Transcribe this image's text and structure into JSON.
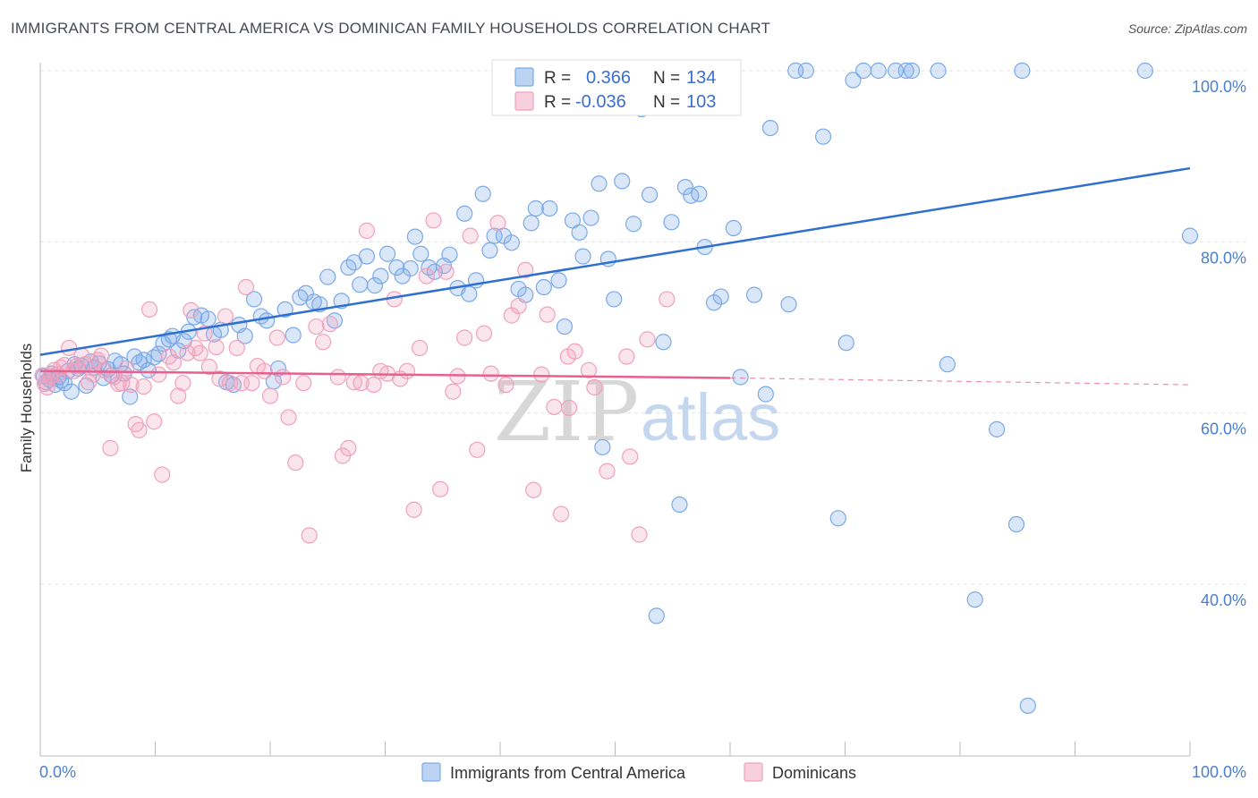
{
  "title": "IMMIGRANTS FROM CENTRAL AMERICA VS DOMINICAN FAMILY HOUSEHOLDS CORRELATION CHART",
  "source": "Source: ZipAtlas.com",
  "watermark": {
    "zip": "ZIP",
    "atlas": "atlas"
  },
  "legend": {
    "r_label": "R =",
    "n_label": "N =",
    "rows": [
      {
        "r": "0.366",
        "n": "134",
        "color": "#a9c8f0"
      },
      {
        "r": "-0.036",
        "n": "103",
        "color": "#f5bdd0"
      }
    ]
  },
  "chart_data": {
    "type": "scatter",
    "title": "IMMIGRANTS FROM CENTRAL AMERICA VS DOMINICAN FAMILY HOUSEHOLDS CORRELATION CHART",
    "xlabel": "",
    "ylabel": "Family Households",
    "xlim": [
      0,
      100
    ],
    "ylim": [
      20,
      102
    ],
    "x_tick_labels": [
      "0.0%",
      "100.0%"
    ],
    "y_ticks": [
      40,
      60,
      80,
      100
    ],
    "y_tick_labels": [
      "40.0%",
      "60.0%",
      "80.0%",
      "100.0%"
    ],
    "grid": true,
    "legend_position": "bottom-center",
    "series": [
      {
        "name": "Immigrants from Central America",
        "color": "#7aa9e8",
        "line_color": "#2e6fd0",
        "trend": {
          "x0": 0,
          "y0": 66.8,
          "x1": 100,
          "y1": 88.6
        },
        "points": [
          [
            0.3,
            64.3
          ],
          [
            0.5,
            63.6
          ],
          [
            0.8,
            63.9
          ],
          [
            1.0,
            64.6
          ],
          [
            1.3,
            63.3
          ],
          [
            1.6,
            64.2
          ],
          [
            1.8,
            63.8
          ],
          [
            2.1,
            63.5
          ],
          [
            2.4,
            64.9
          ],
          [
            2.7,
            62.5
          ],
          [
            3.0,
            65.7
          ],
          [
            3.3,
            65.2
          ],
          [
            3.6,
            65.5
          ],
          [
            4.0,
            63.2
          ],
          [
            4.4,
            66.0
          ],
          [
            4.7,
            65.3
          ],
          [
            5.1,
            65.8
          ],
          [
            5.5,
            64.1
          ],
          [
            5.9,
            65.1
          ],
          [
            6.2,
            64.4
          ],
          [
            6.5,
            66.1
          ],
          [
            7.0,
            65.7
          ],
          [
            7.3,
            64.6
          ],
          [
            7.8,
            61.9
          ],
          [
            8.2,
            66.6
          ],
          [
            8.6,
            65.9
          ],
          [
            9.0,
            66.2
          ],
          [
            9.4,
            65.0
          ],
          [
            9.9,
            66.5
          ],
          [
            10.3,
            66.9
          ],
          [
            10.7,
            68.1
          ],
          [
            11.2,
            68.6
          ],
          [
            11.5,
            69.0
          ],
          [
            12.0,
            67.3
          ],
          [
            12.5,
            68.4
          ],
          [
            12.9,
            69.5
          ],
          [
            13.4,
            71.2
          ],
          [
            14.0,
            71.4
          ],
          [
            14.6,
            71.0
          ],
          [
            15.1,
            69.2
          ],
          [
            15.7,
            69.7
          ],
          [
            16.2,
            63.6
          ],
          [
            16.8,
            63.3
          ],
          [
            17.3,
            70.3
          ],
          [
            17.8,
            69.0
          ],
          [
            18.6,
            73.3
          ],
          [
            19.2,
            71.3
          ],
          [
            19.7,
            70.8
          ],
          [
            20.3,
            63.7
          ],
          [
            20.7,
            65.2
          ],
          [
            21.3,
            72.1
          ],
          [
            22.0,
            69.1
          ],
          [
            22.6,
            73.5
          ],
          [
            23.1,
            74.0
          ],
          [
            23.8,
            73.0
          ],
          [
            24.3,
            72.7
          ],
          [
            25.0,
            75.9
          ],
          [
            25.6,
            70.8
          ],
          [
            26.2,
            73.1
          ],
          [
            26.8,
            77.0
          ],
          [
            27.3,
            77.6
          ],
          [
            27.8,
            75.0
          ],
          [
            28.4,
            78.3
          ],
          [
            29.1,
            74.9
          ],
          [
            29.6,
            76.0
          ],
          [
            30.2,
            78.6
          ],
          [
            31.0,
            77.0
          ],
          [
            31.5,
            76.0
          ],
          [
            32.2,
            76.9
          ],
          [
            32.6,
            80.6
          ],
          [
            33.1,
            78.6
          ],
          [
            33.8,
            77.0
          ],
          [
            34.3,
            76.5
          ],
          [
            35.1,
            77.2
          ],
          [
            35.6,
            78.5
          ],
          [
            36.3,
            74.6
          ],
          [
            36.9,
            83.3
          ],
          [
            37.3,
            73.9
          ],
          [
            37.9,
            75.5
          ],
          [
            38.5,
            85.6
          ],
          [
            39.1,
            79.0
          ],
          [
            39.5,
            80.7
          ],
          [
            40.3,
            80.7
          ],
          [
            41.0,
            79.9
          ],
          [
            41.6,
            74.5
          ],
          [
            42.2,
            73.8
          ],
          [
            42.7,
            82.2
          ],
          [
            43.1,
            83.9
          ],
          [
            43.8,
            74.7
          ],
          [
            44.3,
            83.9
          ],
          [
            45.1,
            75.5
          ],
          [
            45.6,
            70.1
          ],
          [
            46.3,
            82.5
          ],
          [
            46.9,
            81.1
          ],
          [
            47.2,
            78.3
          ],
          [
            47.9,
            82.8
          ],
          [
            48.6,
            86.8
          ],
          [
            48.9,
            56.0
          ],
          [
            49.4,
            78.0
          ],
          [
            49.9,
            73.3
          ],
          [
            50.6,
            87.1
          ],
          [
            51.6,
            82.1
          ],
          [
            52.3,
            95.5
          ],
          [
            53.0,
            85.5
          ],
          [
            53.6,
            36.3
          ],
          [
            54.2,
            68.3
          ],
          [
            54.9,
            82.3
          ],
          [
            55.6,
            49.3
          ],
          [
            56.1,
            86.4
          ],
          [
            56.6,
            85.4
          ],
          [
            57.3,
            85.6
          ],
          [
            57.8,
            79.4
          ],
          [
            58.6,
            72.9
          ],
          [
            59.2,
            73.6
          ],
          [
            60.3,
            81.6
          ],
          [
            60.9,
            64.2
          ],
          [
            62.1,
            73.8
          ],
          [
            63.1,
            62.2
          ],
          [
            63.5,
            93.3
          ],
          [
            65.1,
            72.7
          ],
          [
            65.7,
            100.0
          ],
          [
            66.6,
            100.0
          ],
          [
            68.1,
            92.3
          ],
          [
            69.4,
            47.7
          ],
          [
            70.1,
            68.2
          ],
          [
            70.7,
            98.9
          ],
          [
            71.6,
            100.0
          ],
          [
            72.9,
            100.0
          ],
          [
            74.4,
            100.0
          ],
          [
            75.3,
            100.0
          ],
          [
            75.8,
            100.0
          ],
          [
            78.1,
            100.0
          ],
          [
            78.9,
            65.7
          ],
          [
            81.3,
            38.2
          ],
          [
            83.2,
            58.1
          ],
          [
            84.9,
            47.0
          ],
          [
            85.4,
            100.0
          ],
          [
            85.9,
            25.8
          ],
          [
            96.1,
            100.0
          ],
          [
            100.0,
            80.7
          ]
        ]
      },
      {
        "name": "Dominicans",
        "color": "#f0a0bc",
        "line_color": "#e8608e",
        "trend": {
          "x0": 0,
          "y0": 64.9,
          "x1": 60,
          "y1": 64.1
        },
        "trend_dashed": {
          "x0": 60,
          "y0": 64.1,
          "x1": 100,
          "y1": 63.3
        },
        "points": [
          [
            0.2,
            64.4
          ],
          [
            0.4,
            63.4
          ],
          [
            0.6,
            63.0
          ],
          [
            0.9,
            64.3
          ],
          [
            1.2,
            65.0
          ],
          [
            1.5,
            64.5
          ],
          [
            1.8,
            65.3
          ],
          [
            2.1,
            65.6
          ],
          [
            2.5,
            67.6
          ],
          [
            2.9,
            64.9
          ],
          [
            3.2,
            65.5
          ],
          [
            3.6,
            66.7
          ],
          [
            3.9,
            65.7
          ],
          [
            4.2,
            63.6
          ],
          [
            4.6,
            64.5
          ],
          [
            5.0,
            66.2
          ],
          [
            5.3,
            66.7
          ],
          [
            5.6,
            65.0
          ],
          [
            6.1,
            55.9
          ],
          [
            6.4,
            64.2
          ],
          [
            6.8,
            63.4
          ],
          [
            7.1,
            63.5
          ],
          [
            7.5,
            65.2
          ],
          [
            7.9,
            63.3
          ],
          [
            8.3,
            58.7
          ],
          [
            8.6,
            58.0
          ],
          [
            9.0,
            63.1
          ],
          [
            9.5,
            72.1
          ],
          [
            9.9,
            59.0
          ],
          [
            10.3,
            64.5
          ],
          [
            10.6,
            52.8
          ],
          [
            11.2,
            66.6
          ],
          [
            11.6,
            65.9
          ],
          [
            12.0,
            62.0
          ],
          [
            12.4,
            63.5
          ],
          [
            12.8,
            67.0
          ],
          [
            13.1,
            72.0
          ],
          [
            13.5,
            67.6
          ],
          [
            13.9,
            67.0
          ],
          [
            14.3,
            69.3
          ],
          [
            14.7,
            65.4
          ],
          [
            15.3,
            67.7
          ],
          [
            15.6,
            64.0
          ],
          [
            16.1,
            71.3
          ],
          [
            16.5,
            63.5
          ],
          [
            17.1,
            67.6
          ],
          [
            17.5,
            63.5
          ],
          [
            17.9,
            74.7
          ],
          [
            18.4,
            63.5
          ],
          [
            18.9,
            65.5
          ],
          [
            19.5,
            64.9
          ],
          [
            20.0,
            62.0
          ],
          [
            20.6,
            68.8
          ],
          [
            21.1,
            64.2
          ],
          [
            21.6,
            59.5
          ],
          [
            22.2,
            54.2
          ],
          [
            22.9,
            63.5
          ],
          [
            23.4,
            45.7
          ],
          [
            24.0,
            70.1
          ],
          [
            24.6,
            68.3
          ],
          [
            25.2,
            70.4
          ],
          [
            25.9,
            64.2
          ],
          [
            26.3,
            55.0
          ],
          [
            26.8,
            55.9
          ],
          [
            27.3,
            63.6
          ],
          [
            27.9,
            63.5
          ],
          [
            28.4,
            81.3
          ],
          [
            29.0,
            63.3
          ],
          [
            29.6,
            64.9
          ],
          [
            30.2,
            64.6
          ],
          [
            30.8,
            73.3
          ],
          [
            31.3,
            64.0
          ],
          [
            31.9,
            64.9
          ],
          [
            32.5,
            48.7
          ],
          [
            33.0,
            67.6
          ],
          [
            33.6,
            76.0
          ],
          [
            34.2,
            82.5
          ],
          [
            34.8,
            51.1
          ],
          [
            35.3,
            76.5
          ],
          [
            35.9,
            62.5
          ],
          [
            36.3,
            64.3
          ],
          [
            36.9,
            68.8
          ],
          [
            37.4,
            80.7
          ],
          [
            38.0,
            55.7
          ],
          [
            38.6,
            69.3
          ],
          [
            39.2,
            64.6
          ],
          [
            39.8,
            82.2
          ],
          [
            40.5,
            63.3
          ],
          [
            41.0,
            71.4
          ],
          [
            41.6,
            72.5
          ],
          [
            42.2,
            76.7
          ],
          [
            42.9,
            51.0
          ],
          [
            43.6,
            64.5
          ],
          [
            44.1,
            71.5
          ],
          [
            44.7,
            60.7
          ],
          [
            45.3,
            48.2
          ],
          [
            46.0,
            60.6
          ],
          [
            46.5,
            67.2
          ],
          [
            47.7,
            65.0
          ],
          [
            49.3,
            53.2
          ],
          [
            51.3,
            54.9
          ],
          [
            52.1,
            45.8
          ],
          [
            52.8,
            68.6
          ],
          [
            54.5,
            73.3
          ],
          [
            48.2,
            63.0
          ],
          [
            45.9,
            66.6
          ],
          [
            51.0,
            66.6
          ]
        ]
      }
    ]
  },
  "x_axis_labels": {
    "left": "0.0%",
    "right": "100.0%"
  }
}
